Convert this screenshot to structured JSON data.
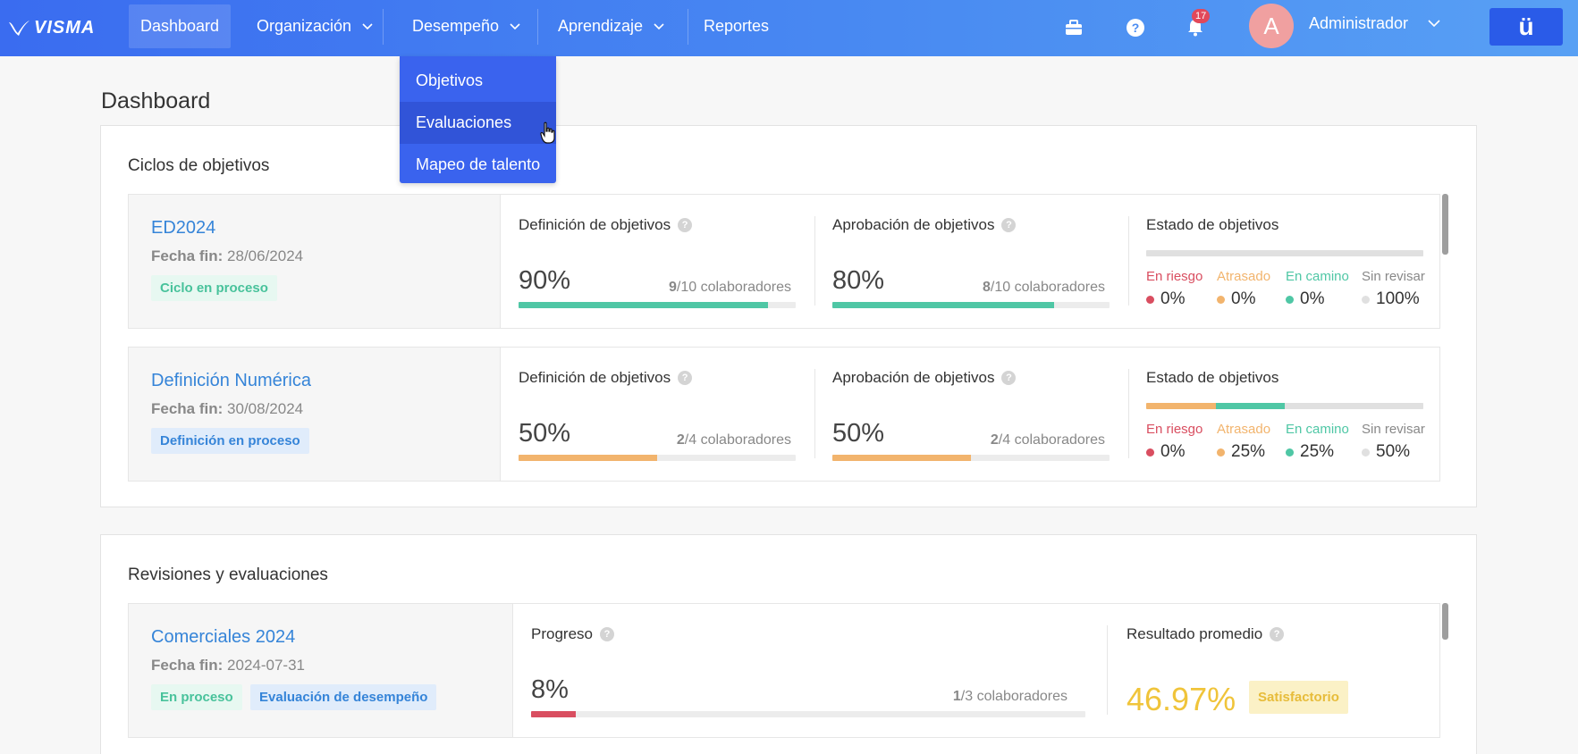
{
  "nav": {
    "logo": "VISMA",
    "items": [
      {
        "label": "Dashboard"
      },
      {
        "label": "Organización"
      },
      {
        "label": "Desempeño"
      },
      {
        "label": "Aprendizaje"
      },
      {
        "label": "Reportes"
      }
    ],
    "notification_count": "17",
    "avatar_initial": "A",
    "user_name": "Administrador",
    "brand_glyph": "ü"
  },
  "dropdown": {
    "items": [
      {
        "label": "Objetivos"
      },
      {
        "label": "Evaluaciones"
      },
      {
        "label": "Mapeo de talento"
      }
    ]
  },
  "page_title": "Dashboard",
  "cycles": {
    "title": "Ciclos de objetivos",
    "date_label": "Fecha fin:",
    "col_definition": "Definición de objetivos",
    "col_approval": "Aprobación de objetivos",
    "col_status": "Estado de objetivos",
    "collab_suffix": "colaboradores",
    "status_labels": [
      "En riesgo",
      "Atrasado",
      "En camino",
      "Sin revisar"
    ],
    "rows": [
      {
        "name": "ED2024",
        "date": "28/06/2024",
        "tag": "Ciclo en proceso",
        "definition": {
          "pct": "90%",
          "done": "9",
          "total": "/10",
          "fraction": 0.9
        },
        "approval": {
          "pct": "80%",
          "done": "8",
          "total": "/10",
          "fraction": 0.8
        },
        "status": [
          "0%",
          "0%",
          "0%",
          "100%"
        ],
        "status_fractions": [
          0,
          0,
          0,
          1
        ]
      },
      {
        "name": "Definición Numérica",
        "date": "30/08/2024",
        "tag": "Definición en proceso",
        "definition": {
          "pct": "50%",
          "done": "2",
          "total": "/4",
          "fraction": 0.5
        },
        "approval": {
          "pct": "50%",
          "done": "2",
          "total": "/4",
          "fraction": 0.5
        },
        "status": [
          "0%",
          "25%",
          "25%",
          "50%"
        ],
        "status_fractions": [
          0,
          0.25,
          0.25,
          0.5
        ]
      }
    ]
  },
  "reviews": {
    "title": "Revisiones y evaluaciones",
    "row": {
      "name": "Comerciales 2024",
      "date_label": "Fecha fin:",
      "date": "2024-07-31",
      "tag_status": "En proceso",
      "tag_type": "Evaluación de desempeño",
      "progress_label": "Progreso",
      "progress_pct": "8%",
      "progress_done": "1",
      "progress_total": "/3",
      "progress_suffix": "colaboradores",
      "progress_fraction": 0.08,
      "result_label": "Resultado promedio",
      "result_value": "46.97%",
      "result_tag": "Satisfactorio"
    }
  },
  "colors": {
    "green": "#4fc7a5",
    "orange": "#f2b46d",
    "red": "#d94e60",
    "grey": "#e0e0e0",
    "accent": "#3584d8"
  }
}
